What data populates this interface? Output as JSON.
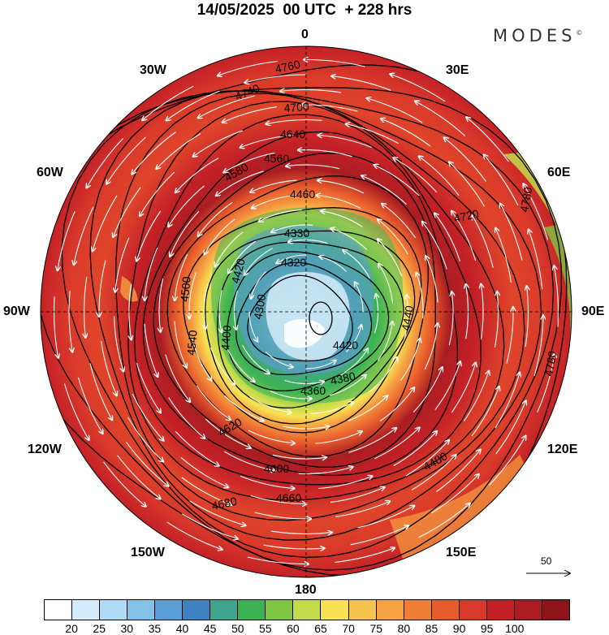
{
  "title": "14/05/2025  00 UTC  + 228 hrs",
  "brand": "MODES",
  "brand_mark": "©",
  "longitude_labels": {
    "n": "0",
    "ne": "30E",
    "e_upper": "60E",
    "e": "90E",
    "e_lower": "120E",
    "se": "150E",
    "s": "180",
    "sw": "150W",
    "w_lower": "120W",
    "w": "90W",
    "w_upper": "60W",
    "nw": "30W"
  },
  "reference_vector_label": "50",
  "colorbar": {
    "colors": [
      "#ffffff",
      "#d4ecfb",
      "#aedbf5",
      "#85c2ea",
      "#5b9fd6",
      "#3f82c2",
      "#3ea58c",
      "#3cb253",
      "#7dc644",
      "#c2dc4c",
      "#f6e252",
      "#f8c450",
      "#f6a142",
      "#f07f36",
      "#e85c2c",
      "#d9392a",
      "#c42126",
      "#a91d22",
      "#8b1518"
    ],
    "labels": [
      "20",
      "25",
      "30",
      "35",
      "40",
      "45",
      "50",
      "55",
      "60",
      "65",
      "70",
      "75",
      "80",
      "85",
      "90",
      "95",
      "100"
    ]
  },
  "contour_labels": [
    {
      "text": "4760",
      "v": 0
    },
    {
      "text": "4740",
      "v": 1
    },
    {
      "text": "4700",
      "v": 2
    },
    {
      "text": "4640",
      "v": 3
    },
    {
      "text": "4560",
      "v": 4
    },
    {
      "text": "4460",
      "v": 5
    },
    {
      "text": "4380",
      "v": 6
    },
    {
      "text": "4330",
      "v": 7
    },
    {
      "text": "4320",
      "v": 8
    },
    {
      "text": "4300",
      "v": 9
    },
    {
      "text": "4680",
      "v": 10
    },
    {
      "text": "4720",
      "v": 11
    },
    {
      "text": "4660",
      "v": 12
    },
    {
      "text": "4600",
      "v": 13
    },
    {
      "text": "4580",
      "v": 14
    },
    {
      "text": "4500",
      "v": 15
    },
    {
      "text": "4540",
      "v": 16
    },
    {
      "text": "4440",
      "v": 17
    },
    {
      "text": "4400",
      "v": 18
    },
    {
      "text": "4360",
      "v": 19
    },
    {
      "text": "4620",
      "v": 20
    },
    {
      "text": "4420",
      "v": 21
    },
    {
      "text": "4480",
      "v": 22
    },
    {
      "text": "4420",
      "v": 23
    },
    {
      "text": "4780",
      "v": 24
    },
    {
      "text": "4780",
      "v": 25
    }
  ]
}
